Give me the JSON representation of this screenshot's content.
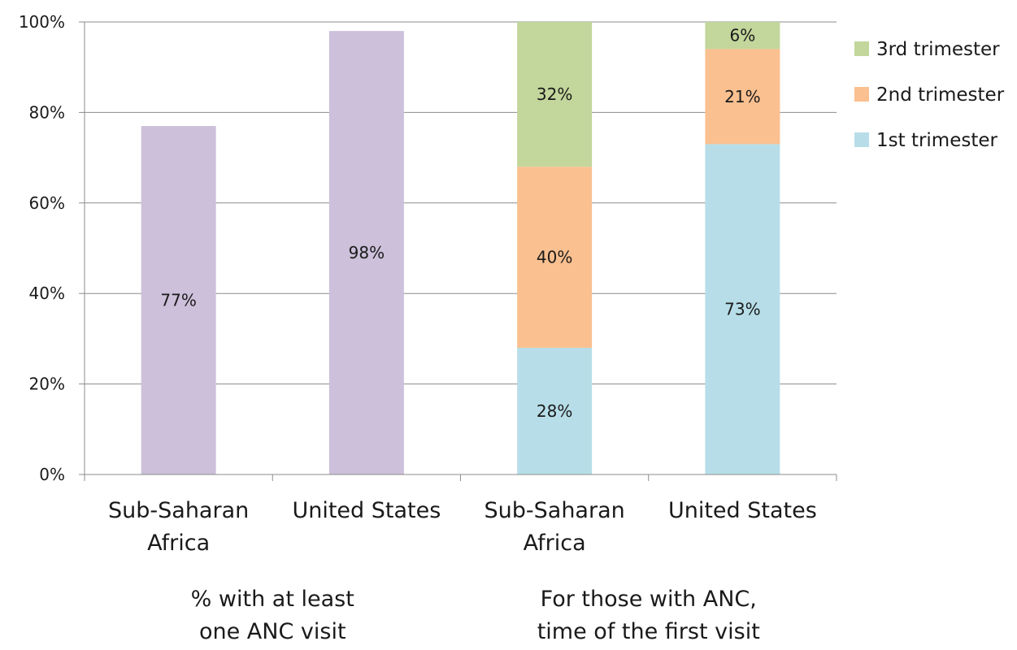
{
  "chart_data": {
    "type": "bar",
    "ylim": [
      0,
      100
    ],
    "y_ticks": [
      "0%",
      "20%",
      "40%",
      "60%",
      "80%",
      "100%"
    ],
    "grid": true,
    "legend_position": "right",
    "categories": [
      [
        "Sub-Saharan",
        "Africa"
      ],
      [
        "United States"
      ],
      [
        "Sub-Saharan",
        "Africa"
      ],
      [
        "United States"
      ]
    ],
    "groups": [
      {
        "label": [
          "% with at least",
          "one ANC visit"
        ],
        "categories": [
          0,
          1
        ]
      },
      {
        "label": [
          "For those with ANC,",
          "time of the first visit"
        ],
        "categories": [
          2,
          3
        ]
      }
    ],
    "single_series": {
      "color": "#ccc0da",
      "values": [
        {
          "category": 0,
          "value": 77,
          "label": "77%"
        },
        {
          "category": 1,
          "value": 98,
          "label": "98%"
        }
      ]
    },
    "stacked_series": [
      {
        "name": "1st trimester",
        "color": "#b7dee8",
        "values": [
          {
            "category": 2,
            "value": 28,
            "label": "28%"
          },
          {
            "category": 3,
            "value": 73,
            "label": "73%"
          }
        ]
      },
      {
        "name": "2nd trimester",
        "color": "#fac090",
        "values": [
          {
            "category": 2,
            "value": 40,
            "label": "40%"
          },
          {
            "category": 3,
            "value": 21,
            "label": "21%"
          }
        ]
      },
      {
        "name": "3rd trimester",
        "color": "#c3d69b",
        "values": [
          {
            "category": 2,
            "value": 32,
            "label": "32%"
          },
          {
            "category": 3,
            "value": 6,
            "label": "6%"
          }
        ]
      }
    ],
    "legend_order": [
      "3rd trimester",
      "2nd trimester",
      "1st trimester"
    ],
    "gridline_color": "#8c8c8c",
    "axis_color": "#8c8c8c"
  }
}
